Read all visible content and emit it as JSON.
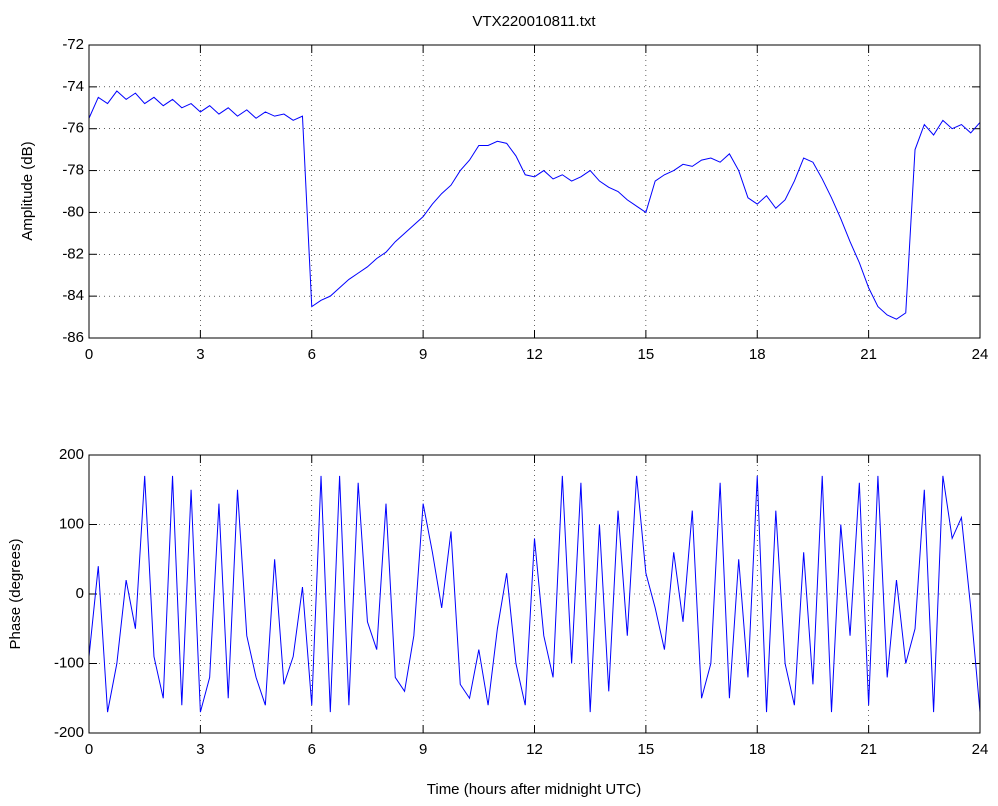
{
  "chart_data": [
    {
      "type": "line",
      "title": "VTX220010811.txt",
      "ylabel": "Amplitude (dB)",
      "grid": true,
      "xlim": [
        0,
        24
      ],
      "xticks": [
        0,
        3,
        6,
        9,
        12,
        15,
        18,
        21,
        24
      ],
      "ylim": [
        -86,
        -72
      ],
      "yticks": [
        -86,
        -84,
        -82,
        -80,
        -78,
        -76,
        -74,
        -72
      ],
      "x": [
        0,
        0.25,
        0.5,
        0.75,
        1,
        1.25,
        1.5,
        1.75,
        2,
        2.25,
        2.5,
        2.75,
        3,
        3.25,
        3.5,
        3.75,
        4,
        4.25,
        4.5,
        4.75,
        5,
        5.25,
        5.5,
        5.75,
        6,
        6.25,
        6.5,
        6.75,
        7,
        7.25,
        7.5,
        7.75,
        8,
        8.25,
        8.5,
        8.75,
        9,
        9.25,
        9.5,
        9.75,
        10,
        10.25,
        10.5,
        10.75,
        11,
        11.25,
        11.5,
        11.75,
        12,
        12.25,
        12.5,
        12.75,
        13,
        13.25,
        13.5,
        13.75,
        14,
        14.25,
        14.5,
        14.75,
        15,
        15.25,
        15.5,
        15.75,
        16,
        16.25,
        16.5,
        16.75,
        17,
        17.25,
        17.5,
        17.75,
        18,
        18.25,
        18.5,
        18.75,
        19,
        19.25,
        19.5,
        19.75,
        20,
        20.25,
        20.5,
        20.75,
        21,
        21.25,
        21.5,
        21.75,
        22,
        22.25,
        22.5,
        22.75,
        23,
        23.25,
        23.5,
        23.75,
        24
      ],
      "series": [
        {
          "color": "#0000ff",
          "values": [
            -75.5,
            -74.5,
            -74.8,
            -74.2,
            -74.6,
            -74.3,
            -74.8,
            -74.5,
            -74.9,
            -74.6,
            -75.0,
            -74.8,
            -75.2,
            -74.9,
            -75.3,
            -75.0,
            -75.4,
            -75.1,
            -75.5,
            -75.2,
            -75.4,
            -75.3,
            -75.6,
            -75.4,
            -84.5,
            -84.2,
            -84.0,
            -83.6,
            -83.2,
            -82.9,
            -82.6,
            -82.2,
            -81.9,
            -81.4,
            -81.0,
            -80.6,
            -80.2,
            -79.6,
            -79.1,
            -78.7,
            -78.0,
            -77.5,
            -76.8,
            -76.8,
            -76.6,
            -76.7,
            -77.3,
            -78.2,
            -78.3,
            -78.0,
            -78.4,
            -78.2,
            -78.5,
            -78.3,
            -78.0,
            -78.5,
            -78.8,
            -79.0,
            -79.4,
            -79.7,
            -80.0,
            -78.5,
            -78.2,
            -78.0,
            -77.7,
            -77.8,
            -77.5,
            -77.4,
            -77.6,
            -77.2,
            -78.0,
            -79.3,
            -79.6,
            -79.2,
            -79.8,
            -79.4,
            -78.5,
            -77.4,
            -77.6,
            -78.4,
            -79.3,
            -80.3,
            -81.4,
            -82.4,
            -83.6,
            -84.5,
            -84.9,
            -85.1,
            -84.8,
            -77.0,
            -75.8,
            -76.3,
            -75.6,
            -76.0,
            -75.8,
            -76.2,
            -75.7
          ]
        }
      ]
    },
    {
      "type": "line",
      "xlabel": "Time (hours after midnight UTC)",
      "ylabel": "Phase (degrees)",
      "grid": true,
      "xlim": [
        0,
        24
      ],
      "xticks": [
        0,
        3,
        6,
        9,
        12,
        15,
        18,
        21,
        24
      ],
      "ylim": [
        -200,
        200
      ],
      "yticks": [
        -200,
        -100,
        0,
        100,
        200
      ],
      "x": [
        0,
        0.25,
        0.5,
        0.75,
        1,
        1.25,
        1.5,
        1.75,
        2,
        2.25,
        2.5,
        2.75,
        3,
        3.25,
        3.5,
        3.75,
        4,
        4.25,
        4.5,
        4.75,
        5,
        5.25,
        5.5,
        5.75,
        6,
        6.25,
        6.5,
        6.75,
        7,
        7.25,
        7.5,
        7.75,
        8,
        8.25,
        8.5,
        8.75,
        9,
        9.25,
        9.5,
        9.75,
        10,
        10.25,
        10.5,
        10.75,
        11,
        11.25,
        11.5,
        11.75,
        12,
        12.25,
        12.5,
        12.75,
        13,
        13.25,
        13.5,
        13.75,
        14,
        14.25,
        14.5,
        14.75,
        15,
        15.25,
        15.5,
        15.75,
        16,
        16.25,
        16.5,
        16.75,
        17,
        17.25,
        17.5,
        17.75,
        18,
        18.25,
        18.5,
        18.75,
        19,
        19.25,
        19.5,
        19.75,
        20,
        20.25,
        20.5,
        20.75,
        21,
        21.25,
        21.5,
        21.75,
        22,
        22.25,
        22.5,
        22.75,
        23,
        23.25,
        23.5,
        23.75,
        24
      ],
      "series": [
        {
          "color": "#0000ff",
          "values": [
            -90,
            40,
            -170,
            -100,
            20,
            -50,
            170,
            -90,
            -150,
            170,
            -160,
            150,
            -170,
            -120,
            130,
            -150,
            150,
            -60,
            -120,
            -160,
            50,
            -130,
            -90,
            10,
            -160,
            170,
            -170,
            170,
            -160,
            160,
            -40,
            -80,
            130,
            -120,
            -140,
            -60,
            130,
            60,
            -20,
            90,
            -130,
            -150,
            -80,
            -160,
            -50,
            30,
            -100,
            -160,
            80,
            -60,
            -120,
            170,
            -100,
            160,
            -170,
            100,
            -140,
            120,
            -60,
            170,
            30,
            -20,
            -80,
            60,
            -40,
            120,
            -150,
            -100,
            160,
            -150,
            50,
            -120,
            170,
            -170,
            120,
            -100,
            -160,
            60,
            -130,
            170,
            -170,
            100,
            -60,
            160,
            -160,
            170,
            -120,
            20,
            -100,
            -50,
            150,
            -170,
            170,
            80,
            110,
            -20,
            -170
          ]
        }
      ]
    }
  ]
}
